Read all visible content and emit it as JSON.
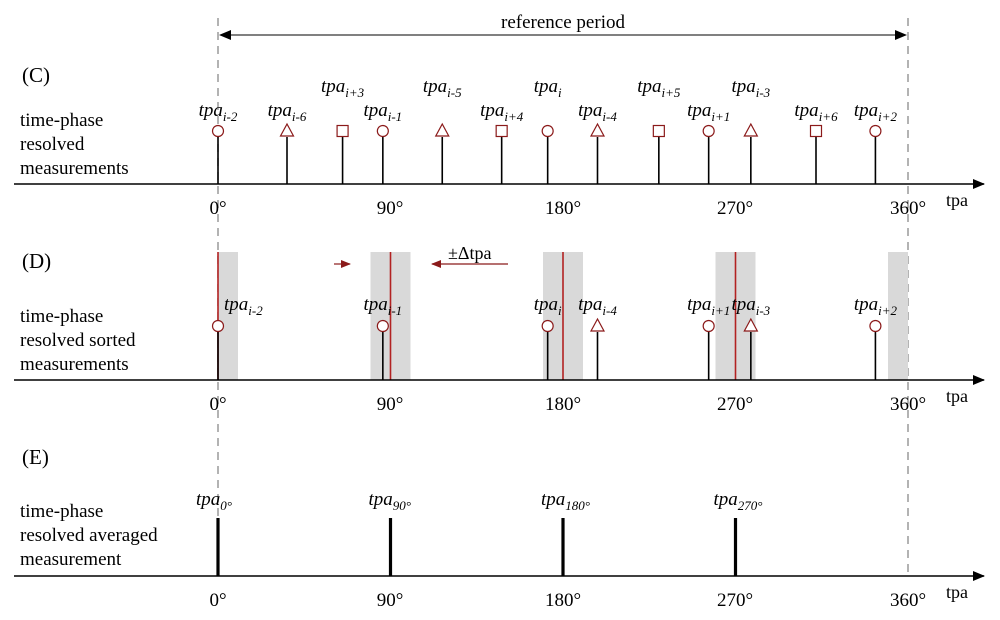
{
  "reference_period_label": "reference period",
  "axis_name": "tpa",
  "degree_ticks": [
    "0°",
    "90°",
    "180°",
    "270°",
    "360°"
  ],
  "delta_label": "±Δtpa",
  "colors": {
    "marker_stroke": "#8b1a1a",
    "bin_fill": "#d9d9d9",
    "bin_center_line": "#b22222",
    "axis": "#000000",
    "dashed": "#9a9a9a"
  },
  "sections": {
    "C": {
      "letter": "(C)",
      "label_lines": [
        "time-phase",
        "resolved",
        "measurements"
      ]
    },
    "D": {
      "letter": "(D)",
      "label_lines": [
        "time-phase",
        "resolved sorted",
        "measurements"
      ]
    },
    "E": {
      "letter": "(E)",
      "label_lines": [
        "time-phase",
        "resolved averaged",
        "measurement"
      ]
    }
  },
  "panel_C_measurements": [
    {
      "phase_deg": 0,
      "shape": "circle",
      "base": "tpa",
      "sub": "i-2",
      "label_level": "low"
    },
    {
      "phase_deg": 36,
      "shape": "triangle",
      "base": "tpa",
      "sub": "i-6",
      "label_level": "low"
    },
    {
      "phase_deg": 65,
      "shape": "square",
      "base": "tpa",
      "sub": "i+3",
      "label_level": "high"
    },
    {
      "phase_deg": 86,
      "shape": "circle",
      "base": "tpa",
      "sub": "i-1",
      "label_level": "low"
    },
    {
      "phase_deg": 117,
      "shape": "triangle",
      "base": "tpa",
      "sub": "i-5",
      "label_level": "high"
    },
    {
      "phase_deg": 148,
      "shape": "square",
      "base": "tpa",
      "sub": "i+4",
      "label_level": "low"
    },
    {
      "phase_deg": 172,
      "shape": "circle",
      "base": "tpa",
      "sub": "i",
      "label_level": "high"
    },
    {
      "phase_deg": 198,
      "shape": "triangle",
      "base": "tpa",
      "sub": "i-4",
      "label_level": "low"
    },
    {
      "phase_deg": 230,
      "shape": "square",
      "base": "tpa",
      "sub": "i+5",
      "label_level": "high"
    },
    {
      "phase_deg": 256,
      "shape": "circle",
      "base": "tpa",
      "sub": "i+1",
      "label_level": "low"
    },
    {
      "phase_deg": 278,
      "shape": "triangle",
      "base": "tpa",
      "sub": "i-3",
      "label_level": "high"
    },
    {
      "phase_deg": 312,
      "shape": "square",
      "base": "tpa",
      "sub": "i+6",
      "label_level": "low"
    },
    {
      "phase_deg": 343,
      "shape": "circle",
      "base": "tpa",
      "sub": "i+2",
      "label_level": "low"
    }
  ],
  "panel_D_bins_deg": [
    0,
    90,
    180,
    270,
    360
  ],
  "panel_D_measurements": [
    {
      "phase_deg": 0,
      "shape": "circle",
      "base": "tpa",
      "sub": "i-2"
    },
    {
      "phase_deg": 86,
      "shape": "circle",
      "base": "tpa",
      "sub": "i-1"
    },
    {
      "phase_deg": 172,
      "shape": "circle",
      "base": "tpa",
      "sub": "i"
    },
    {
      "phase_deg": 198,
      "shape": "triangle",
      "base": "tpa",
      "sub": "i-4"
    },
    {
      "phase_deg": 256,
      "shape": "circle",
      "base": "tpa",
      "sub": "i+1"
    },
    {
      "phase_deg": 278,
      "shape": "triangle",
      "base": "tpa",
      "sub": "i-3"
    },
    {
      "phase_deg": 343,
      "shape": "circle",
      "base": "tpa",
      "sub": "i+2"
    }
  ],
  "panel_E_measurements": [
    {
      "phase_deg": 0,
      "base": "tpa",
      "sub": "0°"
    },
    {
      "phase_deg": 90,
      "base": "tpa",
      "sub": "90°"
    },
    {
      "phase_deg": 180,
      "base": "tpa",
      "sub": "180°"
    },
    {
      "phase_deg": 270,
      "base": "tpa",
      "sub": "270°"
    }
  ]
}
